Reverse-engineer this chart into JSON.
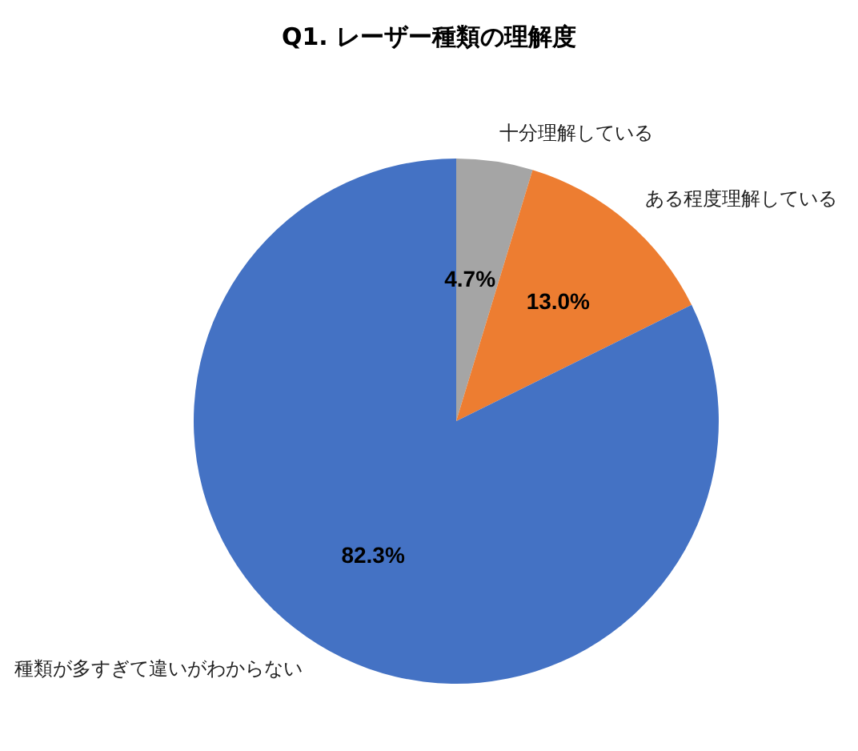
{
  "chart_data": {
    "type": "pie",
    "title": "Q1. レーザー種類の理解度",
    "categories": [
      "十分理解している",
      "ある程度理解している",
      "種類が多すぎて違いがわからない"
    ],
    "values": [
      4.7,
      13.0,
      82.3
    ],
    "colors": [
      "#a5a5a5",
      "#ed7d31",
      "#4472c4"
    ],
    "value_labels": [
      "4.7%",
      "13.0%",
      "82.3%"
    ]
  }
}
